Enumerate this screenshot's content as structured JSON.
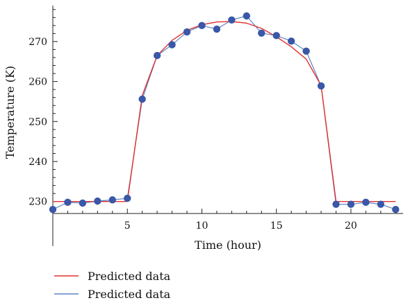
{
  "chart_data": {
    "type": "line",
    "title": "",
    "xlabel": "Time (hour)",
    "ylabel": "Temperature (K)",
    "xlim": [
      0,
      23.5
    ],
    "ylim": [
      227,
      279
    ],
    "xticks": [
      5,
      10,
      15,
      20
    ],
    "yticks": [
      230,
      240,
      250,
      260,
      270
    ],
    "grid": false,
    "legend_position": "bottom-left",
    "series": [
      {
        "name": "Predicted data",
        "color": "#e0302f",
        "style": "line",
        "x": [
          0,
          5,
          6,
          7,
          8,
          9,
          10,
          11,
          12,
          13,
          14,
          15,
          16,
          17,
          18,
          19,
          23
        ],
        "y": [
          230,
          230,
          256.5,
          266.5,
          270.3,
          272.8,
          274.2,
          274.9,
          275.0,
          274.6,
          273.3,
          271.2,
          268.7,
          265.6,
          259,
          230,
          230
        ]
      },
      {
        "name": "Predicted data",
        "color": "#5b86c4",
        "marker_color": "#3a57a8",
        "style": "line+markers",
        "x": [
          0,
          1,
          2,
          3,
          4,
          5,
          6,
          7,
          8,
          9,
          10,
          11,
          12,
          13,
          14,
          15,
          16,
          17,
          18,
          19,
          20,
          21,
          22,
          23
        ],
        "y": [
          228,
          229.8,
          229.6,
          230.1,
          230.4,
          230.8,
          255.6,
          266.5,
          269.2,
          272.4,
          274.0,
          273.1,
          275.4,
          276.4,
          272.1,
          271.5,
          270.1,
          267.6,
          258.9,
          229.3,
          229.3,
          229.8,
          229.3,
          228.0
        ]
      }
    ]
  }
}
